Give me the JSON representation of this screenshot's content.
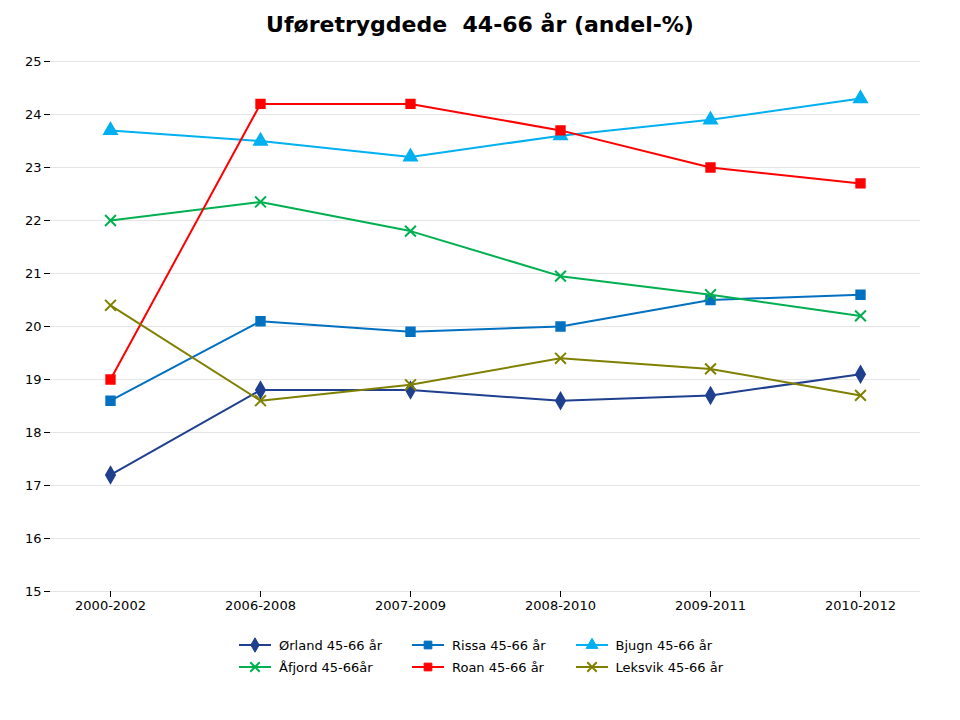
{
  "chart_data": {
    "type": "line",
    "title": "Uføretrygdede  44-66 år (andel-%)",
    "categories": [
      "2000-2002",
      "2006-2008",
      "2007-2009",
      "2008-2010",
      "2009-2011",
      "2010-2012"
    ],
    "series": [
      {
        "name": "Ørland 45-66 år",
        "color": "#1F3F8F",
        "marker": "diamond",
        "values": [
          17.2,
          18.8,
          18.8,
          18.6,
          18.7,
          19.1
        ]
      },
      {
        "name": "Rissa 45-66 år",
        "color": "#0070C0",
        "marker": "square",
        "values": [
          18.6,
          20.1,
          19.9,
          20.0,
          20.5,
          20.6
        ]
      },
      {
        "name": "Bjugn 45-66 år",
        "color": "#00B0F0",
        "marker": "triangle",
        "values": [
          23.7,
          23.5,
          23.2,
          23.6,
          23.9,
          24.3
        ]
      },
      {
        "name": "Åfjord 45-66år",
        "color": "#00B050",
        "marker": "x",
        "values": [
          22.0,
          22.35,
          21.8,
          20.95,
          20.6,
          20.2
        ]
      },
      {
        "name": "Roan 45-66 år",
        "color": "#FF0000",
        "marker": "square",
        "values": [
          19.0,
          24.2,
          24.2,
          23.7,
          23.0,
          22.7
        ]
      },
      {
        "name": "Leksvik 45-66 år",
        "color": "#808000",
        "marker": "x",
        "values": [
          20.4,
          18.6,
          18.9,
          19.4,
          19.2,
          18.7
        ]
      }
    ],
    "ylim": [
      15,
      25
    ],
    "yticks": [
      15,
      16,
      17,
      18,
      19,
      20,
      21,
      22,
      23,
      24,
      25
    ],
    "grid": true,
    "legend": "bottom"
  }
}
